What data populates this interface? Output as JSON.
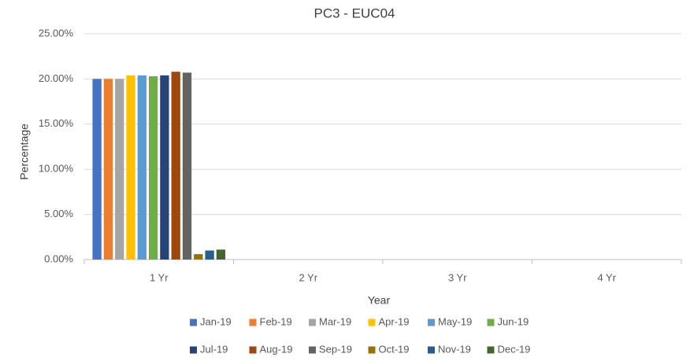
{
  "chart_data": {
    "type": "bar",
    "title": "PC3 - EUC04",
    "x_label": "Year",
    "y_label": "Percentage",
    "categories": [
      "1 Yr",
      "2 Yr",
      "3 Yr",
      "4 Yr"
    ],
    "series": [
      {
        "name": "Jan-19",
        "color": "#4472c4",
        "values": [
          20.0,
          0,
          0,
          0
        ]
      },
      {
        "name": "Feb-19",
        "color": "#ed7d31",
        "values": [
          20.0,
          0,
          0,
          0
        ]
      },
      {
        "name": "Mar-19",
        "color": "#a5a5a5",
        "values": [
          20.0,
          0,
          0,
          0
        ]
      },
      {
        "name": "Apr-19",
        "color": "#ffc000",
        "values": [
          20.4,
          0,
          0,
          0
        ]
      },
      {
        "name": "May-19",
        "color": "#5b9bd5",
        "values": [
          20.4,
          0,
          0,
          0
        ]
      },
      {
        "name": "Jun-19",
        "color": "#70ad47",
        "values": [
          20.3,
          0,
          0,
          0
        ]
      },
      {
        "name": "Jul-19",
        "color": "#264478",
        "values": [
          20.4,
          0,
          0,
          0
        ]
      },
      {
        "name": "Aug-19",
        "color": "#9e480e",
        "values": [
          20.8,
          0,
          0,
          0
        ]
      },
      {
        "name": "Sep-19",
        "color": "#636363",
        "values": [
          20.7,
          0,
          0,
          0
        ]
      },
      {
        "name": "Oct-19",
        "color": "#997300",
        "values": [
          0.6,
          0,
          0,
          0
        ]
      },
      {
        "name": "Nov-19",
        "color": "#255e91",
        "values": [
          1.0,
          0,
          0,
          0
        ]
      },
      {
        "name": "Dec-19",
        "color": "#43682b",
        "values": [
          1.1,
          0,
          0,
          0
        ]
      }
    ],
    "ylim": [
      0,
      25
    ],
    "yticks": [
      {
        "value": 0,
        "label": "0.00%"
      },
      {
        "value": 5,
        "label": "5.00%"
      },
      {
        "value": 10,
        "label": "10.00%"
      },
      {
        "value": 15,
        "label": "15.00%"
      },
      {
        "value": 20,
        "label": "20.00%"
      },
      {
        "value": 25,
        "label": "25.00%"
      }
    ],
    "grid": true,
    "legend": "bottom"
  }
}
